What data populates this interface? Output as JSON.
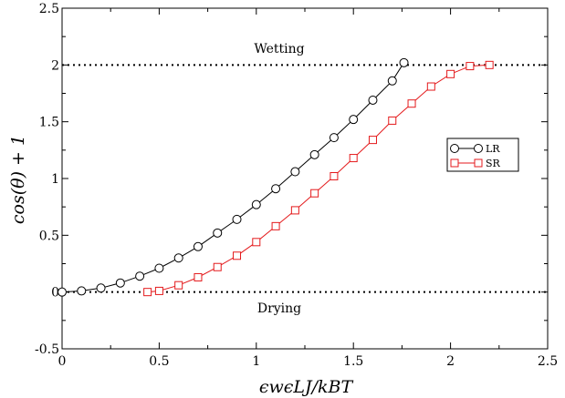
{
  "chart_data": {
    "type": "line",
    "xlabel": "ϵwϵLJ/kBT",
    "ylabel": "cos(θ) + 1",
    "xlim": [
      0,
      2.5
    ],
    "ylim": [
      -0.5,
      2.5
    ],
    "x_ticks": [
      0,
      0.5,
      1,
      1.5,
      2,
      2.5
    ],
    "x_tick_labels": [
      "0",
      "0.5",
      "1",
      "1.5",
      "2",
      "2.5"
    ],
    "y_ticks": [
      -0.5,
      0,
      0.5,
      1,
      1.5,
      2,
      2.5
    ],
    "y_tick_labels": [
      "-0.5",
      "0",
      "0.5",
      "1",
      "1.5",
      "2",
      "2.5"
    ],
    "grid": false,
    "legend_position": "right",
    "reference_lines": [
      {
        "y": 2,
        "style": "dotted",
        "label": "Wetting"
      },
      {
        "y": 0,
        "style": "dotted",
        "label": "Drying"
      }
    ],
    "series": [
      {
        "name": "LR",
        "color": "#000000",
        "marker": "circle",
        "x": [
          0,
          0.1,
          0.2,
          0.3,
          0.4,
          0.5,
          0.6,
          0.7,
          0.8,
          0.9,
          1.0,
          1.1,
          1.2,
          1.3,
          1.4,
          1.5,
          1.6,
          1.7,
          1.76
        ],
        "y": [
          0,
          0.01,
          0.035,
          0.08,
          0.14,
          0.21,
          0.3,
          0.4,
          0.52,
          0.64,
          0.77,
          0.91,
          1.06,
          1.21,
          1.36,
          1.52,
          1.69,
          1.86,
          2.02
        ]
      },
      {
        "name": "SR",
        "color": "#e41a1c",
        "marker": "square",
        "x": [
          0.44,
          0.5,
          0.6,
          0.7,
          0.8,
          0.9,
          1.0,
          1.1,
          1.2,
          1.3,
          1.4,
          1.5,
          1.6,
          1.7,
          1.8,
          1.9,
          2.0,
          2.1,
          2.2
        ],
        "y": [
          0,
          0.01,
          0.06,
          0.13,
          0.22,
          0.32,
          0.44,
          0.58,
          0.72,
          0.87,
          1.02,
          1.18,
          1.34,
          1.51,
          1.66,
          1.81,
          1.92,
          1.99,
          2.0
        ]
      }
    ]
  }
}
